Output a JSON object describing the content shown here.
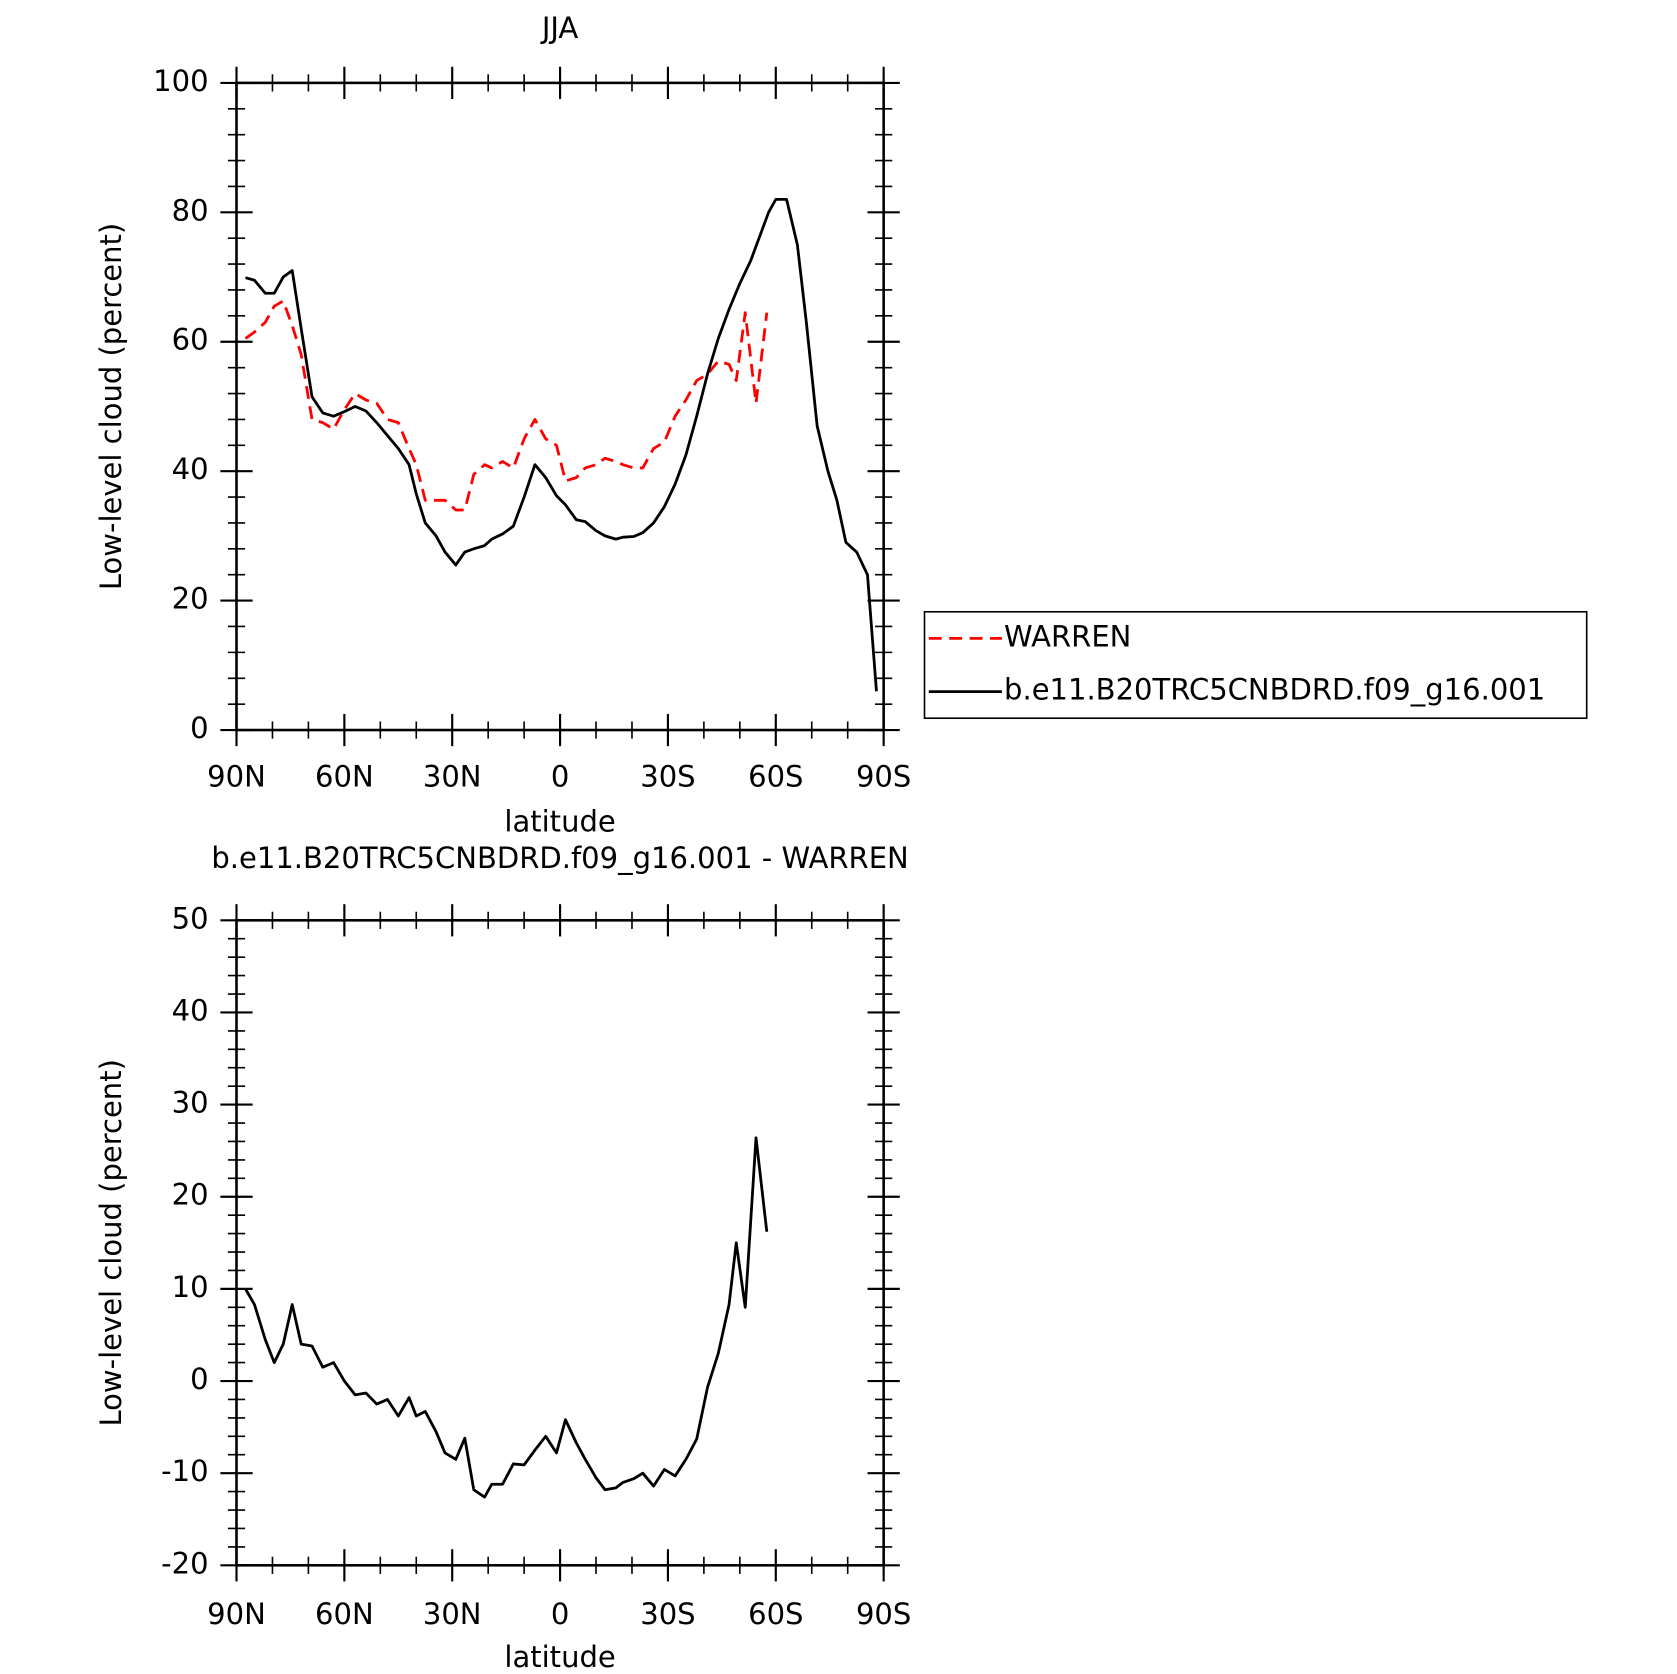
{
  "chart_data": [
    {
      "type": "line",
      "title": "JJA",
      "xlabel": "latitude",
      "ylabel": "Low-level cloud (percent)",
      "xlim": [
        90,
        -90
      ],
      "xticks": [
        {
          "value": 90,
          "label": "90N"
        },
        {
          "value": 60,
          "label": "60N"
        },
        {
          "value": 30,
          "label": "30N"
        },
        0,
        {
          "value": -30,
          "label": "30S"
        },
        {
          "value": -60,
          "label": "60S"
        },
        {
          "value": -90,
          "label": "90S"
        }
      ],
      "ylim": [
        0,
        100
      ],
      "yticks": [
        0,
        20,
        40,
        60,
        80,
        100
      ],
      "legend": "right",
      "series": [
        {
          "name": "WARREN",
          "color": "#ff0000",
          "dashed": true,
          "x": [
            87.5,
            85,
            82,
            79.5,
            77,
            74.5,
            72,
            69,
            66,
            63,
            60,
            57,
            54,
            51,
            48,
            45,
            42,
            40,
            37.5,
            34.5,
            32,
            29,
            26.5,
            24,
            21,
            19,
            16,
            13,
            10,
            7,
            4,
            1,
            -1.5,
            -4.5,
            -7,
            -10,
            -12.5,
            -15.5,
            -17.5,
            -20.5,
            -23,
            -26,
            -29,
            -32,
            -35,
            -38,
            -41,
            -44,
            -47,
            -49,
            -51.5,
            -54.5,
            -57.5
          ],
          "values": [
            60.5,
            61.5,
            63,
            65.5,
            66.3,
            62.5,
            58,
            48,
            47.5,
            46.5,
            49.5,
            52,
            51,
            50.5,
            48,
            47.5,
            43.5,
            41,
            35.5,
            35.5,
            35.5,
            34,
            34,
            39.5,
            41,
            40.5,
            41.5,
            40.5,
            45,
            48,
            45,
            44,
            38.5,
            39,
            40.5,
            41,
            42,
            41.5,
            41,
            40.5,
            40.5,
            43.5,
            44.5,
            48.5,
            51,
            54,
            55,
            57,
            56.5,
            54,
            64.5,
            50.5,
            64.5
          ]
        },
        {
          "name": "b.e11.B20TRC5CNBDRD.f09_g16.001",
          "color": "#000000",
          "dashed": false,
          "x": [
            87.5,
            85,
            82,
            79.5,
            77,
            74.5,
            72,
            69,
            66,
            63,
            60,
            57,
            54,
            51,
            48,
            45,
            42,
            40,
            37.5,
            34.5,
            32,
            29,
            26.5,
            24,
            21,
            19,
            16,
            13,
            10,
            7,
            4,
            1,
            -1.5,
            -4.5,
            -7,
            -10,
            -12.5,
            -15.5,
            -17.5,
            -20.5,
            -23,
            -26,
            -29,
            -32,
            -35,
            -38,
            -41,
            -44,
            -47,
            -50,
            -53,
            -56,
            -58,
            -60,
            -63,
            -66,
            -68.5,
            -71.5,
            -74.5,
            -77,
            -79.5,
            -82.5,
            -85.5,
            -88
          ],
          "values": [
            69.9,
            69.5,
            67.5,
            67.5,
            70,
            71,
            62,
            51.5,
            49,
            48.5,
            49.2,
            50,
            49.3,
            47.5,
            45.5,
            43.5,
            41,
            36.5,
            32,
            30,
            27.5,
            25.5,
            27.5,
            28,
            28.5,
            29.5,
            30.3,
            31.5,
            36,
            41,
            39,
            36.2,
            34.8,
            32.5,
            32.2,
            30.8,
            30,
            29.5,
            29.8,
            29.9,
            30.5,
            32,
            34.5,
            38,
            42.5,
            48.5,
            55,
            60.5,
            65,
            69,
            72.5,
            77,
            80,
            82,
            82,
            75,
            63,
            47,
            40,
            35.5,
            29,
            27.5,
            24,
            6
          ]
        }
      ]
    },
    {
      "type": "line",
      "title": "b.e11.B20TRC5CNBDRD.f09_g16.001 - WARREN",
      "xlabel": "latitude",
      "ylabel": "Low-level cloud (percent)",
      "xlim": [
        90,
        -90
      ],
      "xticks": [
        {
          "value": 90,
          "label": "90N"
        },
        {
          "value": 60,
          "label": "60N"
        },
        {
          "value": 30,
          "label": "30N"
        },
        0,
        {
          "value": -30,
          "label": "30S"
        },
        {
          "value": -60,
          "label": "60S"
        },
        {
          "value": -90,
          "label": "90S"
        }
      ],
      "ylim": [
        -20,
        50
      ],
      "yticks": [
        -20,
        -10,
        0,
        10,
        20,
        30,
        40,
        50
      ],
      "series": [
        {
          "color": "#000000",
          "dashed": false,
          "x": [
            87.5,
            85,
            82,
            79.5,
            77,
            74.5,
            72,
            69,
            66,
            63,
            60,
            57,
            54,
            51,
            48,
            45,
            42,
            40,
            37.5,
            34.5,
            32,
            29,
            26.5,
            24,
            21,
            19,
            16,
            13,
            10,
            7,
            4,
            1,
            -1.5,
            -4.5,
            -7,
            -10,
            -12.5,
            -15.5,
            -17.5,
            -20.5,
            -23,
            -26,
            -29,
            -32,
            -35,
            -38,
            -41,
            -44,
            -47,
            -49,
            -51.5,
            -54.5,
            -57.5
          ],
          "values": [
            10,
            8.3,
            4.5,
            2,
            4,
            8.3,
            4,
            3.8,
            1.5,
            2,
            0,
            -1.5,
            -1.3,
            -2.5,
            -2,
            -3.8,
            -1.8,
            -3.8,
            -3.3,
            -5.5,
            -7.8,
            -8.5,
            -6.2,
            -11.8,
            -12.6,
            -11.2,
            -11.2,
            -9,
            -9.1,
            -7.5,
            -6,
            -7.8,
            -4.2,
            -6.7,
            -8.5,
            -10.5,
            -11.8,
            -11.6,
            -11,
            -10.6,
            -10,
            -11.4,
            -9.6,
            -10.3,
            -8.5,
            -6.3,
            -0.7,
            3,
            8.3,
            15,
            8,
            26.4,
            16.2
          ]
        }
      ]
    }
  ]
}
